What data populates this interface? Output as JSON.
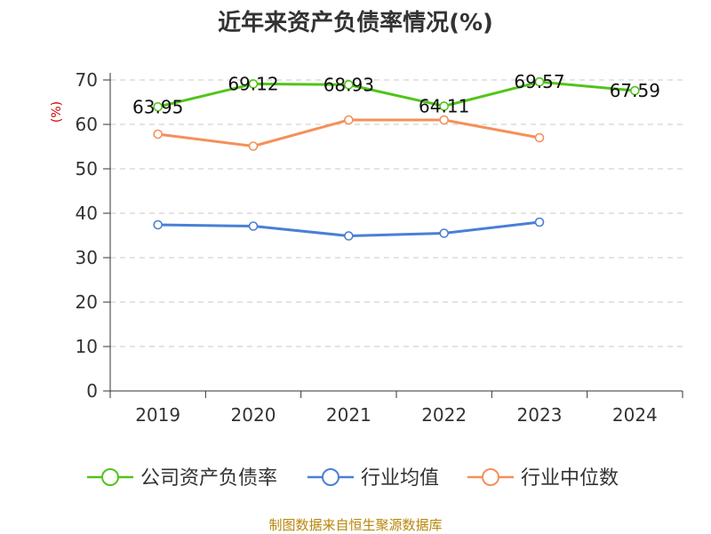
{
  "chart_data": {
    "type": "line",
    "title": "近年来资产负债率情况(%)",
    "ylabel": "(%)",
    "categories": [
      "2019",
      "2020",
      "2021",
      "2022",
      "2023",
      "2024"
    ],
    "ylim": [
      0,
      70
    ],
    "yticks": [
      0,
      10,
      20,
      30,
      40,
      50,
      60,
      70
    ],
    "grid": true,
    "legend_position": "bottom",
    "series": [
      {
        "name": "公司资产负债率",
        "color": "#52c41a",
        "values": [
          63.95,
          69.12,
          68.93,
          64.11,
          69.57,
          67.59
        ],
        "labels": [
          "63.95",
          "69.12",
          "68.93",
          "64.11",
          "69.57",
          "67.59"
        ]
      },
      {
        "name": "行业均值",
        "color": "#4a7fd6",
        "values": [
          37.4,
          37.1,
          34.9,
          35.5,
          38.0,
          null
        ]
      },
      {
        "name": "行业中位数",
        "color": "#f5905a",
        "values": [
          57.8,
          55.1,
          61.0,
          61.0,
          57.0,
          null
        ]
      }
    ]
  },
  "footer": {
    "source": "制图数据来自恒生聚源数据库"
  }
}
